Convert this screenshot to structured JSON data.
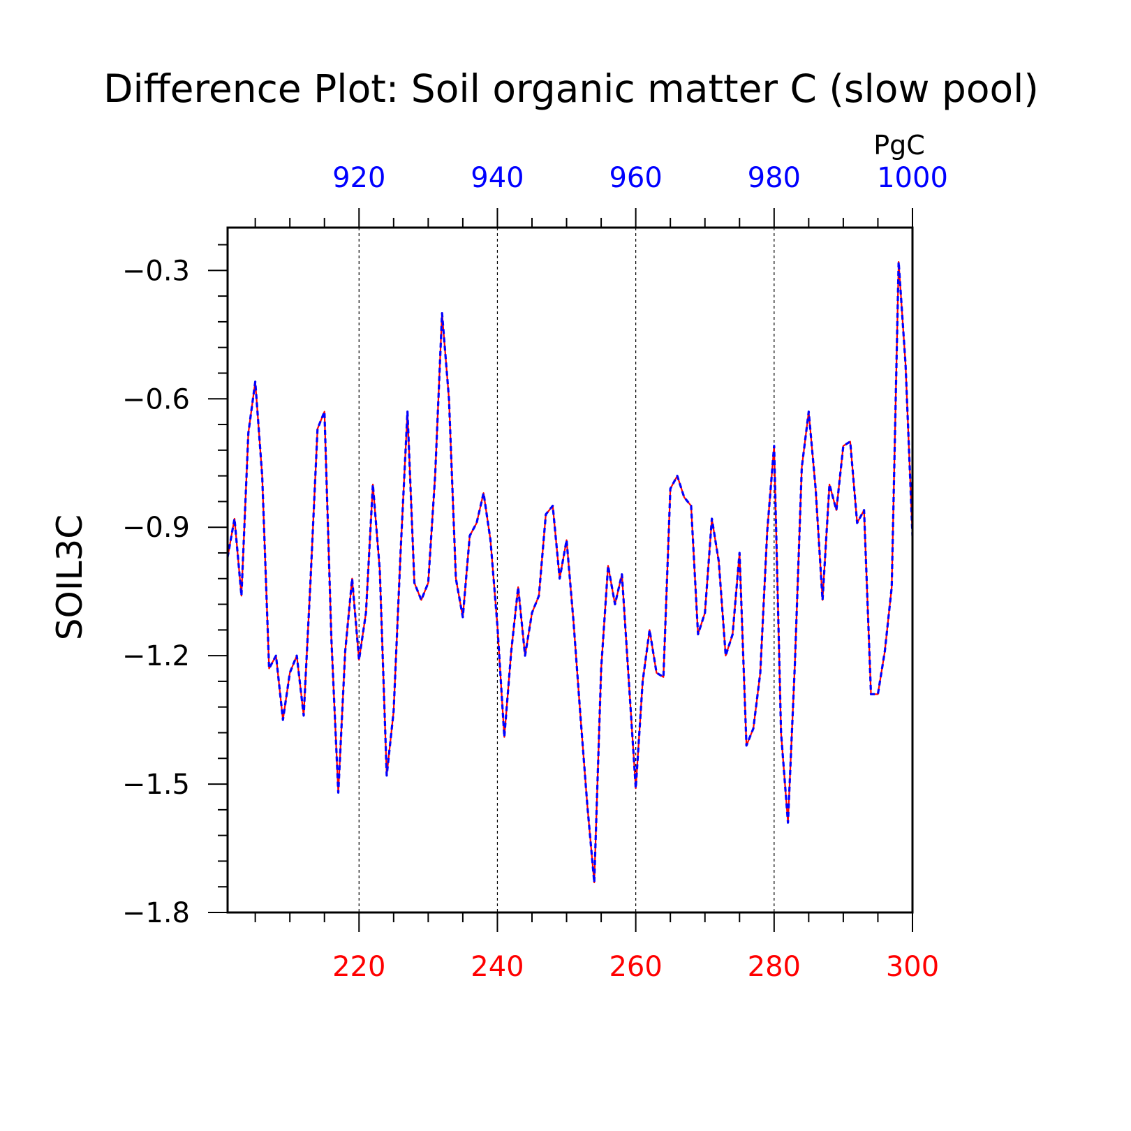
{
  "chart_data": {
    "type": "line",
    "title": "Difference Plot: Soil organic matter C (slow pool)",
    "units": "PgC",
    "ylabel": "SOIL3C",
    "xlabel": "",
    "ylim": [
      -1.8,
      -0.2
    ],
    "yticks": [
      -0.3,
      -0.6,
      -0.9,
      -1.2,
      -1.5,
      -1.8
    ],
    "ytick_labels": [
      "−0.3",
      "−0.6",
      "−0.9",
      "−1.2",
      "−1.5",
      "−1.8"
    ],
    "x_bottom": {
      "color": "#ff0000",
      "range": [
        201,
        300
      ],
      "ticks": [
        220,
        240,
        260,
        280,
        300
      ],
      "tick_labels": [
        "220",
        "240",
        "260",
        "280",
        "300"
      ]
    },
    "x_top": {
      "color": "#0000ff",
      "range": [
        901,
        1000
      ],
      "ticks": [
        920,
        940,
        960,
        980,
        1000
      ],
      "tick_labels": [
        "920",
        "940",
        "960",
        "980",
        "1000"
      ]
    },
    "grid": "vertical dashed at major ticks",
    "series": [
      {
        "color": "#ff0000",
        "axis": "bottom",
        "x_start": 201,
        "x_step": 1,
        "values": [
          -0.97,
          -0.88,
          -1.06,
          -0.68,
          -0.56,
          -0.78,
          -1.23,
          -1.2,
          -1.35,
          -1.24,
          -1.2,
          -1.34,
          -1.02,
          -0.67,
          -0.63,
          -1.16,
          -1.52,
          -1.19,
          -1.02,
          -1.21,
          -1.1,
          -0.8,
          -1.0,
          -1.48,
          -1.33,
          -0.96,
          -0.63,
          -1.03,
          -1.07,
          -1.03,
          -0.78,
          -0.4,
          -0.6,
          -1.02,
          -1.11,
          -0.92,
          -0.89,
          -0.82,
          -0.93,
          -1.13,
          -1.39,
          -1.19,
          -1.04,
          -1.2,
          -1.1,
          -1.06,
          -0.87,
          -0.85,
          -1.02,
          -0.93,
          -1.12,
          -1.34,
          -1.55,
          -1.73,
          -1.23,
          -0.99,
          -1.08,
          -1.01,
          -1.26,
          -1.51,
          -1.26,
          -1.14,
          -1.24,
          -1.25,
          -0.81,
          -0.78,
          -0.83,
          -0.85,
          -1.15,
          -1.1,
          -0.88,
          -0.98,
          -1.2,
          -1.15,
          -0.96,
          -1.41,
          -1.37,
          -1.24,
          -0.91,
          -0.71,
          -1.38,
          -1.59,
          -1.22,
          -0.76,
          -0.63,
          -0.81,
          -1.07,
          -0.8,
          -0.86,
          -0.71,
          -0.7,
          -0.89,
          -0.86,
          -1.29,
          -1.29,
          -1.19,
          -1.04,
          -0.28,
          -0.52,
          -0.92,
          -0.83
        ]
      },
      {
        "color": "#0000ff",
        "axis": "top",
        "dash": "dashed",
        "x_start": 901,
        "x_step": 1,
        "values": [
          -0.97,
          -0.88,
          -1.06,
          -0.68,
          -0.56,
          -0.78,
          -1.23,
          -1.2,
          -1.35,
          -1.24,
          -1.2,
          -1.34,
          -1.02,
          -0.67,
          -0.63,
          -1.16,
          -1.52,
          -1.19,
          -1.02,
          -1.21,
          -1.1,
          -0.8,
          -1.0,
          -1.48,
          -1.33,
          -0.96,
          -0.63,
          -1.03,
          -1.07,
          -1.03,
          -0.78,
          -0.4,
          -0.6,
          -1.02,
          -1.11,
          -0.92,
          -0.89,
          -0.82,
          -0.93,
          -1.13,
          -1.39,
          -1.19,
          -1.04,
          -1.2,
          -1.1,
          -1.06,
          -0.87,
          -0.85,
          -1.02,
          -0.93,
          -1.12,
          -1.34,
          -1.55,
          -1.73,
          -1.23,
          -0.99,
          -1.08,
          -1.01,
          -1.26,
          -1.51,
          -1.26,
          -1.14,
          -1.24,
          -1.25,
          -0.81,
          -0.78,
          -0.83,
          -0.85,
          -1.15,
          -1.1,
          -0.88,
          -0.98,
          -1.2,
          -1.15,
          -0.96,
          -1.41,
          -1.37,
          -1.24,
          -0.91,
          -0.71,
          -1.38,
          -1.59,
          -1.22,
          -0.76,
          -0.63,
          -0.81,
          -1.07,
          -0.8,
          -0.86,
          -0.71,
          -0.7,
          -0.89,
          -0.86,
          -1.29,
          -1.29,
          -1.19,
          -1.04,
          -0.28,
          -0.52,
          -0.92,
          -0.83
        ]
      }
    ]
  }
}
